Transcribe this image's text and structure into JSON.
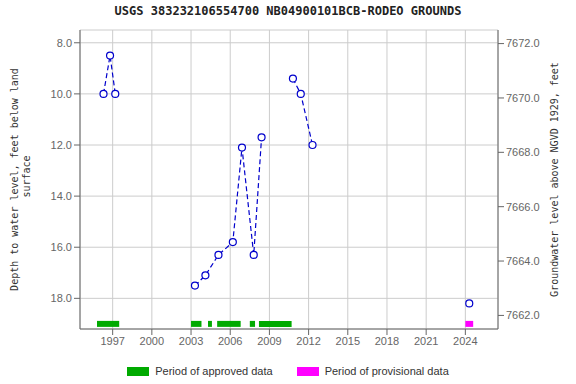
{
  "chart_data": {
    "type": "line",
    "title": "USGS 383232106554700 NB04900101BCB-RODEO GROUNDS",
    "y_label": "Depth to water level, feet below land\n surface",
    "y2_label": "Groundwater level above NGVD 1929, feet",
    "grid": true,
    "legend": "bottom",
    "series": [
      {
        "x": [
          1996.3,
          1996.8,
          1997.2
        ],
        "values": [
          10.0,
          8.5,
          10.0
        ],
        "color": "#0000CC",
        "line_style": "dashed",
        "marker": "circle"
      },
      {
        "x": [
          2003.3,
          2004.1,
          2005.1,
          2006.2,
          2006.9,
          2007.8,
          2008.4
        ],
        "values": [
          17.5,
          17.1,
          16.3,
          15.8,
          12.1,
          16.3,
          11.7
        ],
        "color": "#0000CC",
        "line_style": "dashed",
        "marker": "circle"
      },
      {
        "x": [
          2010.8,
          2011.4,
          2012.3
        ],
        "values": [
          9.4,
          10.0,
          12.0
        ],
        "color": "#0000CC",
        "line_style": "dashed",
        "marker": "circle"
      },
      {
        "x": [
          2024.3
        ],
        "values": [
          18.2
        ],
        "color": "#0000CC",
        "line_style": "none",
        "marker": "circle"
      }
    ],
    "periods": [
      {
        "name": "Period of approved data",
        "color": "#00aa00",
        "y": 19.0,
        "ranges": [
          [
            1995.8,
            1997.5
          ],
          [
            2003.0,
            2003.8
          ],
          [
            2004.3,
            2004.6
          ],
          [
            2005.0,
            2006.8
          ],
          [
            2007.5,
            2007.9
          ],
          [
            2008.2,
            2010.7
          ]
        ]
      },
      {
        "name": "Period of provisional data",
        "color": "#ff00ff",
        "y": 19.0,
        "ranges": [
          [
            2024.0,
            2024.6
          ]
        ]
      }
    ],
    "xlim": [
      1994.5,
      2026.5
    ],
    "xticks": [
      1997,
      2000,
      2003,
      2006,
      2009,
      2012,
      2015,
      2018,
      2021,
      2024
    ],
    "ylim": [
      19.2,
      7.5
    ],
    "yticks": [
      {
        "value": 8.0,
        "label": "8.0"
      },
      {
        "value": 10.0,
        "label": "10.0"
      },
      {
        "value": 12.0,
        "label": "12.0"
      },
      {
        "value": 14.0,
        "label": "14.0"
      },
      {
        "value": 16.0,
        "label": "16.0"
      },
      {
        "value": 18.0,
        "label": "18.0"
      }
    ],
    "y2lim": [
      7661.5,
      7672.5
    ],
    "y2ticks": [
      {
        "value": 7662.0,
        "label": "7662.0"
      },
      {
        "value": 7664.0,
        "label": "7664.0"
      },
      {
        "value": 7666.0,
        "label": "7666.0"
      },
      {
        "value": 7668.0,
        "label": "7668.0"
      },
      {
        "value": 7670.0,
        "label": "7670.0"
      },
      {
        "value": 7672.0,
        "label": "7672.0"
      }
    ]
  }
}
